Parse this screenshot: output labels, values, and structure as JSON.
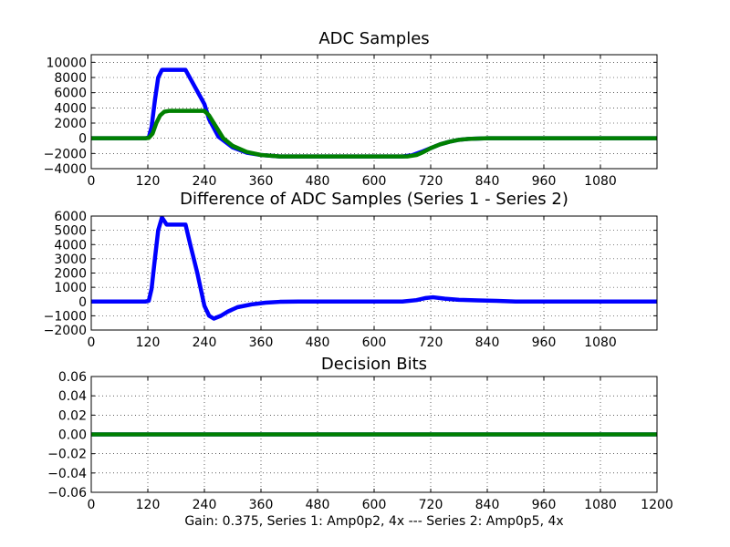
{
  "figure": {
    "xlabel": "Gain: 0.375, Series 1: Amp0p2, 4x --- Series 2: Amp0p5, 4x"
  },
  "chart_data": [
    {
      "type": "line",
      "title": "ADC Samples",
      "xlim": [
        0,
        1200
      ],
      "ylim": [
        -4000,
        11000
      ],
      "grid": true,
      "x_ticks": [
        "0",
        "120",
        "240",
        "360",
        "480",
        "600",
        "720",
        "840",
        "960",
        "1080"
      ],
      "y_ticks": [
        "10000",
        "8000",
        "6000",
        "4000",
        "2000",
        "0",
        "−2000",
        "−4000"
      ],
      "series": [
        {
          "color": "#0000ff",
          "points": [
            [
              0,
              0
            ],
            [
              115,
              0
            ],
            [
              122,
              100
            ],
            [
              128,
              1500
            ],
            [
              135,
              5000
            ],
            [
              142,
              8000
            ],
            [
              150,
              9000
            ],
            [
              200,
              9000
            ],
            [
              240,
              4500
            ],
            [
              250,
              2500
            ],
            [
              270,
              200
            ],
            [
              300,
              -1200
            ],
            [
              330,
              -1900
            ],
            [
              360,
              -2200
            ],
            [
              400,
              -2400
            ],
            [
              660,
              -2400
            ],
            [
              680,
              -2250
            ],
            [
              700,
              -1800
            ],
            [
              720,
              -1300
            ],
            [
              740,
              -800
            ],
            [
              760,
              -450
            ],
            [
              780,
              -200
            ],
            [
              800,
              -80
            ],
            [
              840,
              0
            ],
            [
              1200,
              0
            ]
          ]
        },
        {
          "color": "#008000",
          "points": [
            [
              0,
              0
            ],
            [
              115,
              0
            ],
            [
              122,
              50
            ],
            [
              130,
              600
            ],
            [
              138,
              2000
            ],
            [
              146,
              3000
            ],
            [
              155,
              3500
            ],
            [
              165,
              3600
            ],
            [
              240,
              3600
            ],
            [
              250,
              3000
            ],
            [
              265,
              1500
            ],
            [
              280,
              0
            ],
            [
              300,
              -1000
            ],
            [
              330,
              -1800
            ],
            [
              360,
              -2200
            ],
            [
              400,
              -2400
            ],
            [
              670,
              -2400
            ],
            [
              690,
              -2200
            ],
            [
              705,
              -1800
            ],
            [
              720,
              -1300
            ],
            [
              740,
              -800
            ],
            [
              760,
              -450
            ],
            [
              780,
              -200
            ],
            [
              800,
              -80
            ],
            [
              840,
              0
            ],
            [
              1200,
              0
            ]
          ]
        }
      ]
    },
    {
      "type": "line",
      "title": "Difference of ADC Samples (Series 1 - Series 2)",
      "xlim": [
        0,
        1200
      ],
      "ylim": [
        -2000,
        6000
      ],
      "grid": true,
      "x_ticks": [
        "0",
        "120",
        "240",
        "360",
        "480",
        "600",
        "720",
        "840",
        "960",
        "1080"
      ],
      "y_ticks": [
        "6000",
        "5000",
        "4000",
        "3000",
        "2000",
        "1000",
        "0",
        "−1000",
        "−2000"
      ],
      "series": [
        {
          "color": "#0000ff",
          "points": [
            [
              0,
              0
            ],
            [
              115,
              0
            ],
            [
              122,
              50
            ],
            [
              128,
              900
            ],
            [
              135,
              3000
            ],
            [
              142,
              5000
            ],
            [
              150,
              5900
            ],
            [
              160,
              5400
            ],
            [
              200,
              5400
            ],
            [
              210,
              4000
            ],
            [
              225,
              2000
            ],
            [
              240,
              -300
            ],
            [
              250,
              -1000
            ],
            [
              260,
              -1200
            ],
            [
              275,
              -1000
            ],
            [
              290,
              -700
            ],
            [
              310,
              -400
            ],
            [
              340,
              -200
            ],
            [
              370,
              -80
            ],
            [
              400,
              -20
            ],
            [
              440,
              0
            ],
            [
              660,
              0
            ],
            [
              690,
              100
            ],
            [
              710,
              250
            ],
            [
              725,
              300
            ],
            [
              750,
              200
            ],
            [
              780,
              120
            ],
            [
              820,
              80
            ],
            [
              860,
              50
            ],
            [
              900,
              0
            ],
            [
              1200,
              0
            ]
          ]
        }
      ]
    },
    {
      "type": "line",
      "title": "Decision Bits",
      "xlim": [
        0,
        1200
      ],
      "ylim": [
        -0.06,
        0.06
      ],
      "grid": true,
      "x_ticks": [
        "0",
        "120",
        "240",
        "360",
        "480",
        "600",
        "720",
        "840",
        "960",
        "1080",
        "1200"
      ],
      "y_ticks": [
        "0.06",
        "0.04",
        "0.02",
        "0.00",
        "−0.02",
        "−0.04",
        "−0.06"
      ],
      "series": [
        {
          "color": "#0000ff",
          "points": [
            [
              0,
              0
            ],
            [
              1200,
              0
            ]
          ]
        },
        {
          "color": "#008000",
          "points": [
            [
              0,
              0
            ],
            [
              1200,
              0
            ]
          ]
        }
      ]
    }
  ]
}
